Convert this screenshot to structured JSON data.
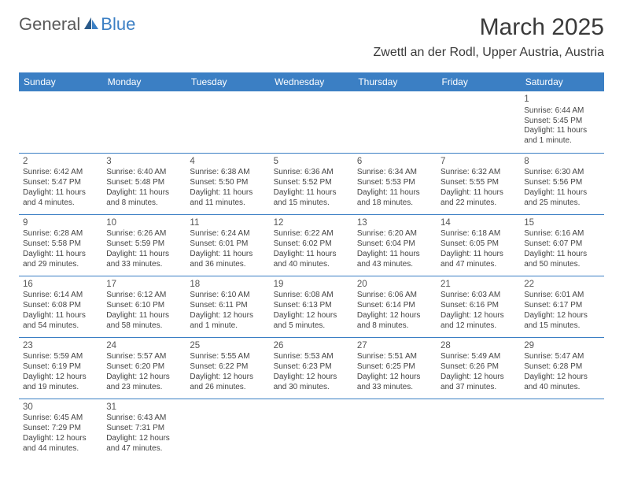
{
  "logo": {
    "word1": "General",
    "word2": "Blue",
    "icon_color": "#3b7fc4"
  },
  "title": "March 2025",
  "location": "Zwettl an der Rodl, Upper Austria, Austria",
  "header_bg": "#3b7fc4",
  "day_headers": [
    "Sunday",
    "Monday",
    "Tuesday",
    "Wednesday",
    "Thursday",
    "Friday",
    "Saturday"
  ],
  "weeks": [
    [
      null,
      null,
      null,
      null,
      null,
      null,
      {
        "n": "1",
        "sunrise": "Sunrise: 6:44 AM",
        "sunset": "Sunset: 5:45 PM",
        "daylight": "Daylight: 11 hours and 1 minute."
      }
    ],
    [
      {
        "n": "2",
        "sunrise": "Sunrise: 6:42 AM",
        "sunset": "Sunset: 5:47 PM",
        "daylight": "Daylight: 11 hours and 4 minutes."
      },
      {
        "n": "3",
        "sunrise": "Sunrise: 6:40 AM",
        "sunset": "Sunset: 5:48 PM",
        "daylight": "Daylight: 11 hours and 8 minutes."
      },
      {
        "n": "4",
        "sunrise": "Sunrise: 6:38 AM",
        "sunset": "Sunset: 5:50 PM",
        "daylight": "Daylight: 11 hours and 11 minutes."
      },
      {
        "n": "5",
        "sunrise": "Sunrise: 6:36 AM",
        "sunset": "Sunset: 5:52 PM",
        "daylight": "Daylight: 11 hours and 15 minutes."
      },
      {
        "n": "6",
        "sunrise": "Sunrise: 6:34 AM",
        "sunset": "Sunset: 5:53 PM",
        "daylight": "Daylight: 11 hours and 18 minutes."
      },
      {
        "n": "7",
        "sunrise": "Sunrise: 6:32 AM",
        "sunset": "Sunset: 5:55 PM",
        "daylight": "Daylight: 11 hours and 22 minutes."
      },
      {
        "n": "8",
        "sunrise": "Sunrise: 6:30 AM",
        "sunset": "Sunset: 5:56 PM",
        "daylight": "Daylight: 11 hours and 25 minutes."
      }
    ],
    [
      {
        "n": "9",
        "sunrise": "Sunrise: 6:28 AM",
        "sunset": "Sunset: 5:58 PM",
        "daylight": "Daylight: 11 hours and 29 minutes."
      },
      {
        "n": "10",
        "sunrise": "Sunrise: 6:26 AM",
        "sunset": "Sunset: 5:59 PM",
        "daylight": "Daylight: 11 hours and 33 minutes."
      },
      {
        "n": "11",
        "sunrise": "Sunrise: 6:24 AM",
        "sunset": "Sunset: 6:01 PM",
        "daylight": "Daylight: 11 hours and 36 minutes."
      },
      {
        "n": "12",
        "sunrise": "Sunrise: 6:22 AM",
        "sunset": "Sunset: 6:02 PM",
        "daylight": "Daylight: 11 hours and 40 minutes."
      },
      {
        "n": "13",
        "sunrise": "Sunrise: 6:20 AM",
        "sunset": "Sunset: 6:04 PM",
        "daylight": "Daylight: 11 hours and 43 minutes."
      },
      {
        "n": "14",
        "sunrise": "Sunrise: 6:18 AM",
        "sunset": "Sunset: 6:05 PM",
        "daylight": "Daylight: 11 hours and 47 minutes."
      },
      {
        "n": "15",
        "sunrise": "Sunrise: 6:16 AM",
        "sunset": "Sunset: 6:07 PM",
        "daylight": "Daylight: 11 hours and 50 minutes."
      }
    ],
    [
      {
        "n": "16",
        "sunrise": "Sunrise: 6:14 AM",
        "sunset": "Sunset: 6:08 PM",
        "daylight": "Daylight: 11 hours and 54 minutes."
      },
      {
        "n": "17",
        "sunrise": "Sunrise: 6:12 AM",
        "sunset": "Sunset: 6:10 PM",
        "daylight": "Daylight: 11 hours and 58 minutes."
      },
      {
        "n": "18",
        "sunrise": "Sunrise: 6:10 AM",
        "sunset": "Sunset: 6:11 PM",
        "daylight": "Daylight: 12 hours and 1 minute."
      },
      {
        "n": "19",
        "sunrise": "Sunrise: 6:08 AM",
        "sunset": "Sunset: 6:13 PM",
        "daylight": "Daylight: 12 hours and 5 minutes."
      },
      {
        "n": "20",
        "sunrise": "Sunrise: 6:06 AM",
        "sunset": "Sunset: 6:14 PM",
        "daylight": "Daylight: 12 hours and 8 minutes."
      },
      {
        "n": "21",
        "sunrise": "Sunrise: 6:03 AM",
        "sunset": "Sunset: 6:16 PM",
        "daylight": "Daylight: 12 hours and 12 minutes."
      },
      {
        "n": "22",
        "sunrise": "Sunrise: 6:01 AM",
        "sunset": "Sunset: 6:17 PM",
        "daylight": "Daylight: 12 hours and 15 minutes."
      }
    ],
    [
      {
        "n": "23",
        "sunrise": "Sunrise: 5:59 AM",
        "sunset": "Sunset: 6:19 PM",
        "daylight": "Daylight: 12 hours and 19 minutes."
      },
      {
        "n": "24",
        "sunrise": "Sunrise: 5:57 AM",
        "sunset": "Sunset: 6:20 PM",
        "daylight": "Daylight: 12 hours and 23 minutes."
      },
      {
        "n": "25",
        "sunrise": "Sunrise: 5:55 AM",
        "sunset": "Sunset: 6:22 PM",
        "daylight": "Daylight: 12 hours and 26 minutes."
      },
      {
        "n": "26",
        "sunrise": "Sunrise: 5:53 AM",
        "sunset": "Sunset: 6:23 PM",
        "daylight": "Daylight: 12 hours and 30 minutes."
      },
      {
        "n": "27",
        "sunrise": "Sunrise: 5:51 AM",
        "sunset": "Sunset: 6:25 PM",
        "daylight": "Daylight: 12 hours and 33 minutes."
      },
      {
        "n": "28",
        "sunrise": "Sunrise: 5:49 AM",
        "sunset": "Sunset: 6:26 PM",
        "daylight": "Daylight: 12 hours and 37 minutes."
      },
      {
        "n": "29",
        "sunrise": "Sunrise: 5:47 AM",
        "sunset": "Sunset: 6:28 PM",
        "daylight": "Daylight: 12 hours and 40 minutes."
      }
    ],
    [
      {
        "n": "30",
        "sunrise": "Sunrise: 6:45 AM",
        "sunset": "Sunset: 7:29 PM",
        "daylight": "Daylight: 12 hours and 44 minutes."
      },
      {
        "n": "31",
        "sunrise": "Sunrise: 6:43 AM",
        "sunset": "Sunset: 7:31 PM",
        "daylight": "Daylight: 12 hours and 47 minutes."
      },
      null,
      null,
      null,
      null,
      null
    ]
  ]
}
